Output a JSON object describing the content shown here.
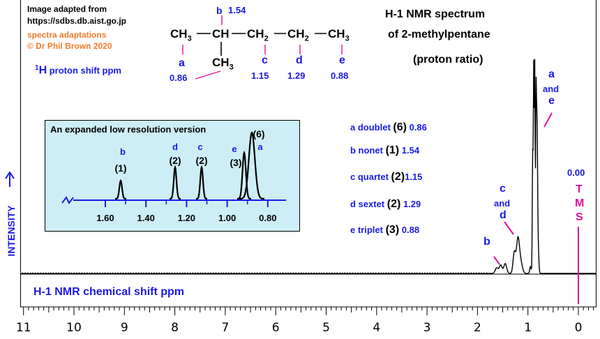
{
  "credits": {
    "line1": "Image adapted from",
    "line2": "https://sdbs.db.aist.go.jp",
    "line3": "spectra adaptations",
    "line4": "© Dr Phil Brown 2020"
  },
  "title": {
    "line1": "H-1 NMR spectrum",
    "line2": "of 2-methylpentane",
    "line3": "(proton ratio)"
  },
  "molecule": {
    "main_chain": [
      "CH",
      "CH",
      "CH",
      "CH",
      "CH"
    ],
    "ch3": "CH",
    "ch": "CH",
    "ch2": "CH",
    "sub3": "3",
    "sub2": "2",
    "branch": "CH",
    "branch_sub": "3",
    "b_letter": "b",
    "b_shift": "1.54",
    "labels": [
      {
        "letter": "a",
        "shift": "0.86"
      },
      {
        "letter": "c",
        "shift": "1.15"
      },
      {
        "letter": "d",
        "shift": "1.29"
      },
      {
        "letter": "e",
        "shift": "0.88"
      }
    ]
  },
  "proton_shift_label": {
    "sup": "1",
    "main": "H",
    "rest": " proton shift  ppm"
  },
  "assignments": [
    {
      "text": "a doublet",
      "ratio": "(6)",
      "shift": "0.86"
    },
    {
      "text": "b nonet",
      "ratio": "(1)",
      "shift": "1.54"
    },
    {
      "text": "c quartet",
      "ratio": "(2)",
      "shift": "1.15"
    },
    {
      "text": "d sextet",
      "ratio": "(2)",
      "shift": "1.29"
    },
    {
      "text": "e triplet",
      "ratio": "(3)",
      "shift": "0.88"
    }
  ],
  "inset": {
    "title": "An expanded low resolution version",
    "axis_ticks": [
      "1.60",
      "1.40",
      "1.20",
      "1.00",
      "0.80"
    ],
    "peaks": [
      {
        "letter": "b",
        "ratio": "(1)",
        "ppm": 1.54,
        "height": 0.28
      },
      {
        "letter": "d",
        "ratio": "(2)",
        "ppm": 1.29,
        "height": 0.48
      },
      {
        "letter": "c",
        "ratio": "(2)",
        "ppm": 1.15,
        "height": 0.48
      },
      {
        "letter": "e",
        "ratio": "(3)",
        "ppm": 0.88,
        "height": 0.7
      },
      {
        "letter": "a",
        "ratio": "(6)",
        "ppm": 0.86,
        "height": 1.0
      }
    ]
  },
  "spectrum_annotations": {
    "ae_line1": "a",
    "ae_line2": "and",
    "ae_line3": "e",
    "cd_line1": "c",
    "cd_line2": "and",
    "cd_line3": "d",
    "b": "b",
    "tms_shift": "0.00",
    "tms_letters": [
      "T",
      "M",
      "S"
    ]
  },
  "axis": {
    "ylabel": "INTENSITY",
    "xlabel": "H-1 NMR chemical shift  ppm",
    "ticks": [
      "11",
      "10",
      "9",
      "8",
      "7",
      "6",
      "5",
      "4",
      "3",
      "2",
      "1",
      "0"
    ]
  },
  "colors": {
    "black": "#000000",
    "blue": "#1a1ae6",
    "magenta": "#e0109a",
    "orange": "#f07a2a",
    "inset_bg": "#cdeef6"
  }
}
